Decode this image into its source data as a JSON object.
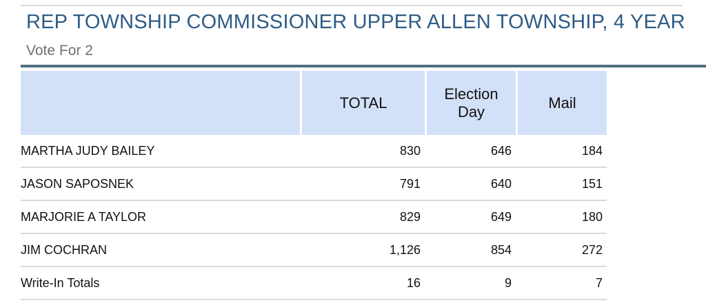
{
  "contest": {
    "title": "REP TOWNSHIP COMMISSIONER UPPER ALLEN TOWNSHIP, 4 YEAR",
    "vote_for": "Vote For 2"
  },
  "table": {
    "headers": [
      "",
      "TOTAL",
      "Election Day",
      "Mail"
    ],
    "rows": [
      {
        "name": "MARTHA JUDY BAILEY",
        "total": "830",
        "election_day": "646",
        "mail": "184"
      },
      {
        "name": "JASON SAPOSNEK",
        "total": "791",
        "election_day": "640",
        "mail": "151"
      },
      {
        "name": "MARJORIE A TAYLOR",
        "total": "829",
        "election_day": "649",
        "mail": "180"
      },
      {
        "name": "JIM COCHRAN",
        "total": "1,126",
        "election_day": "854",
        "mail": "272"
      },
      {
        "name": "Write-In Totals",
        "total": "16",
        "election_day": "9",
        "mail": "7"
      }
    ]
  },
  "colors": {
    "title": "#2e5b86",
    "header_bg": "#d3e1f8",
    "divider": "#4f7080"
  }
}
